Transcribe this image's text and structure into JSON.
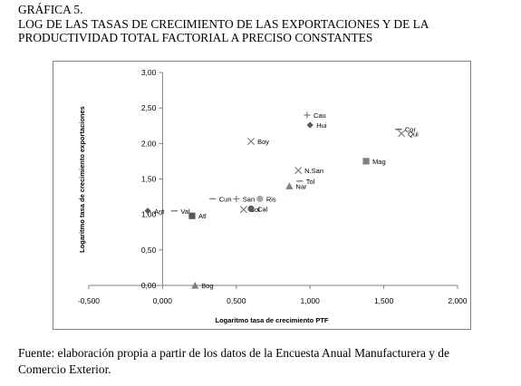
{
  "heading": {
    "label": "GRÁFICA 5.",
    "line1": "LOG DE LAS TASAS DE CRECIMIENTO DE LAS EXPORTACIONES Y DE LA",
    "line2": "PRODUCTIVIDAD TOTAL FACTORIAL A PRECISO CONSTANTES"
  },
  "source": {
    "line1": "Fuente: elaboración propia a partir de los datos de la Encuesta Anual Manufacturera y de",
    "line2": "Comercio Exterior."
  },
  "chart_data": {
    "type": "scatter",
    "title": "",
    "xlabel": "Logaritmo tasa de crecimiento PTF",
    "ylabel": "Logaritmo tasa de crecimiento exportaciones",
    "xlim": [
      -0.5,
      2.0
    ],
    "ylim": [
      0.0,
      3.0
    ],
    "xticks": [
      "-0,500",
      "0,000",
      "0,500",
      "1,000",
      "1,500",
      "2,000"
    ],
    "yticks": [
      "0,00",
      "0,50",
      "1,00",
      "1,50",
      "2,00",
      "2,50",
      "3,00"
    ],
    "grid": false,
    "legend": "none",
    "points": [
      {
        "label": "Cau",
        "x": 0.98,
        "y": 2.4,
        "marker": "plus",
        "color": "#808080"
      },
      {
        "label": "Hui",
        "x": 1.0,
        "y": 2.26,
        "marker": "diamond",
        "color": "#595959"
      },
      {
        "label": "Boy",
        "x": 0.6,
        "y": 2.03,
        "marker": "x",
        "color": "#808080"
      },
      {
        "label": "Cor",
        "x": 1.6,
        "y": 2.2,
        "marker": "dash",
        "color": "#595959"
      },
      {
        "label": "Qui",
        "x": 1.62,
        "y": 2.14,
        "marker": "x",
        "color": "#808080"
      },
      {
        "label": "Mag",
        "x": 1.38,
        "y": 1.75,
        "marker": "square",
        "color": "#808080"
      },
      {
        "label": "N.San",
        "x": 0.92,
        "y": 1.62,
        "marker": "x",
        "color": "#808080"
      },
      {
        "label": "Tol",
        "x": 0.93,
        "y": 1.47,
        "marker": "dash",
        "color": "#808080"
      },
      {
        "label": "Nar",
        "x": 0.86,
        "y": 1.4,
        "marker": "triangle",
        "color": "#808080"
      },
      {
        "label": "Cun",
        "x": 0.34,
        "y": 1.22,
        "marker": "dash",
        "color": "#808080"
      },
      {
        "label": "San",
        "x": 0.5,
        "y": 1.22,
        "marker": "plus",
        "color": "#808080"
      },
      {
        "label": "Ris",
        "x": 0.66,
        "y": 1.22,
        "marker": "circle",
        "color": "#a6a6a6"
      },
      {
        "label": "Bol",
        "x": 0.55,
        "y": 1.07,
        "marker": "x",
        "color": "#808080"
      },
      {
        "label": "Cal",
        "x": 0.6,
        "y": 1.08,
        "marker": "circle",
        "color": "#595959"
      },
      {
        "label": "Ant",
        "x": -0.1,
        "y": 1.05,
        "marker": "diamond",
        "color": "#595959"
      },
      {
        "label": "Val",
        "x": 0.08,
        "y": 1.05,
        "marker": "dash",
        "color": "#808080"
      },
      {
        "label": "Atl",
        "x": 0.2,
        "y": 0.98,
        "marker": "square",
        "color": "#595959"
      },
      {
        "label": "Bog",
        "x": 0.22,
        "y": 0.0,
        "marker": "triangle",
        "color": "#808080"
      }
    ]
  }
}
